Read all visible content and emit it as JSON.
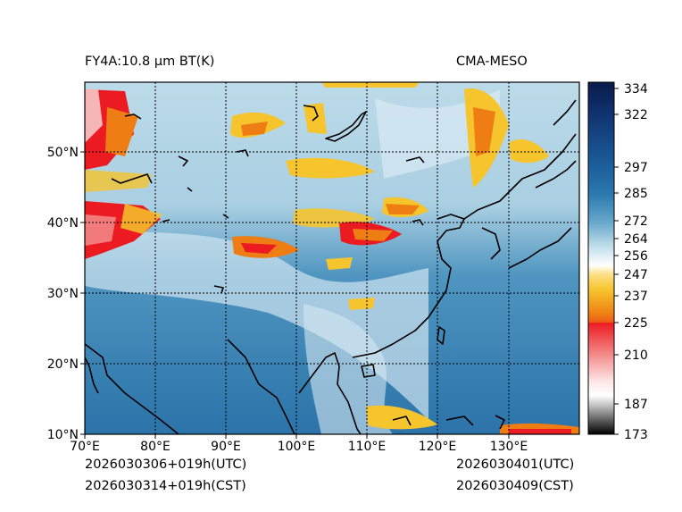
{
  "header": {
    "title": "FY4A:10.8 µm BT(K)",
    "source": "CMA-MESO"
  },
  "footer": {
    "init_utc": "2026030306+019h(UTC)",
    "init_cst": "2026030314+019h(CST)",
    "valid_utc": "2026030401(UTC)",
    "valid_cst": "2026030409(CST)"
  },
  "map": {
    "lon_range": [
      70,
      140
    ],
    "lat_range": [
      10,
      60
    ],
    "lon_labels": [
      "70°E",
      "80°E",
      "90°E",
      "100°E",
      "110°E",
      "120°E",
      "130°E"
    ],
    "lat_labels": [
      "10°N",
      "20°N",
      "30°N",
      "40°N",
      "50°N"
    ]
  },
  "colorbar": {
    "ticks": [
      "334",
      "322",
      "297",
      "285",
      "272",
      "264",
      "256",
      "247",
      "237",
      "225",
      "210",
      "187",
      "173"
    ],
    "colors": {
      "cold_top": "#0a1a4a",
      "deep_blue": "#1c5f9c",
      "mid_blue": "#4b93bd",
      "light_blue": "#b9d9e8",
      "white": "#ffffff",
      "yellow": "#f6c42c",
      "orange": "#ee7d14",
      "red": "#ec1b22",
      "pink": "#f7b6b6",
      "black": "#000000"
    }
  }
}
